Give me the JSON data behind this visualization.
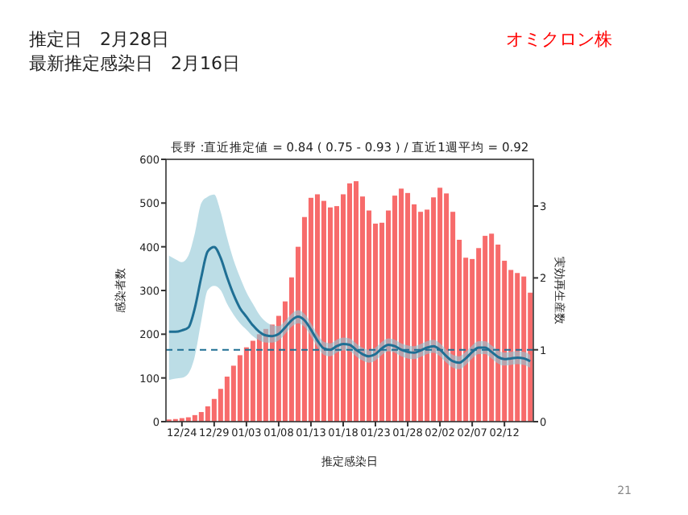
{
  "chart_data": {
    "type": "bar",
    "title": "長野 :直近推定値 = 0.84 ( 0.75 - 0.93 ) / 直近1週平均 = 0.92",
    "xlabel": "推定感染日",
    "ylabel": "感染者数",
    "y2label": "実効再生産数",
    "annotations": [
      "推定日　2月28日",
      "最新推定感染日　2月16日",
      "オミクロン株",
      "21"
    ],
    "categories": [
      null,
      null,
      "12/24",
      null,
      null,
      null,
      null,
      "12/29",
      null,
      null,
      null,
      null,
      "01/03",
      null,
      null,
      null,
      null,
      "01/08",
      null,
      null,
      null,
      null,
      "01/13",
      null,
      null,
      null,
      null,
      "01/18",
      null,
      null,
      null,
      null,
      "01/23",
      null,
      null,
      null,
      null,
      "01/28",
      null,
      null,
      null,
      null,
      "02/02",
      null,
      null,
      null,
      null,
      "02/07",
      null,
      null,
      null,
      null,
      "02/12",
      null,
      null,
      null,
      null
    ],
    "series": [
      {
        "color": "#f76b6b",
        "values": [
          5,
          6,
          8,
          10,
          15,
          22,
          35,
          52,
          75,
          103,
          128,
          152,
          170,
          185,
          200,
          212,
          222,
          242,
          275,
          330,
          400,
          468,
          512,
          520,
          505,
          490,
          493,
          520,
          545,
          550,
          515,
          483,
          453,
          455,
          483,
          517,
          533,
          523,
          497,
          480,
          485,
          513,
          535,
          522,
          480,
          416,
          375,
          372,
          397,
          425,
          430,
          405,
          368,
          347,
          340,
          332,
          295
        ]
      },
      {
        "type": "line",
        "axis": "y2",
        "color": "#1f6f94",
        "values": [
          1.25,
          1.25,
          1.27,
          1.31,
          1.58,
          2.01,
          2.37,
          2.43,
          2.28,
          2.01,
          1.77,
          1.58,
          1.46,
          1.34,
          1.25,
          1.2,
          1.19,
          1.22,
          1.31,
          1.41,
          1.46,
          1.41,
          1.28,
          1.13,
          1.02,
          1.0,
          1.05,
          1.08,
          1.07,
          1.0,
          0.94,
          0.91,
          0.94,
          1.02,
          1.07,
          1.05,
          1.0,
          0.97,
          0.96,
          0.99,
          1.03,
          1.05,
          1.0,
          0.91,
          0.84,
          0.82,
          0.88,
          0.97,
          1.03,
          1.03,
          0.97,
          0.9,
          0.87,
          0.88,
          0.89,
          0.88,
          0.84
        ],
        "upper": [
          2.31,
          2.26,
          2.22,
          2.31,
          2.62,
          3.04,
          3.13,
          3.16,
          2.92,
          2.56,
          2.25,
          2.01,
          1.8,
          1.64,
          1.49,
          1.39,
          1.34,
          1.33,
          1.4,
          1.5,
          1.55,
          1.5,
          1.37,
          1.22,
          1.11,
          1.09,
          1.14,
          1.17,
          1.16,
          1.09,
          1.03,
          1.0,
          1.03,
          1.11,
          1.16,
          1.14,
          1.09,
          1.06,
          1.05,
          1.08,
          1.12,
          1.14,
          1.09,
          1.0,
          0.93,
          0.91,
          0.97,
          1.06,
          1.12,
          1.12,
          1.06,
          0.99,
          0.96,
          0.97,
          0.98,
          0.97,
          0.93
        ],
        "lower": [
          0.58,
          0.6,
          0.61,
          0.67,
          0.91,
          1.4,
          1.83,
          1.89,
          1.83,
          1.64,
          1.49,
          1.37,
          1.28,
          1.19,
          1.13,
          1.1,
          1.1,
          1.13,
          1.22,
          1.32,
          1.37,
          1.32,
          1.19,
          1.04,
          0.93,
          0.91,
          0.96,
          0.99,
          0.98,
          0.91,
          0.85,
          0.82,
          0.85,
          0.93,
          0.98,
          0.96,
          0.91,
          0.88,
          0.87,
          0.9,
          0.94,
          0.96,
          0.91,
          0.82,
          0.75,
          0.73,
          0.79,
          0.88,
          0.94,
          0.94,
          0.88,
          0.81,
          0.78,
          0.79,
          0.8,
          0.79,
          0.75
        ]
      }
    ],
    "ylim": [
      0,
      600
    ],
    "yticks": [
      0,
      100,
      200,
      300,
      400,
      500,
      600
    ],
    "y2lim": [
      0,
      3.65
    ],
    "y2ticks": [
      0,
      1,
      2,
      3
    ],
    "ref_lines": [
      {
        "axis": "y2",
        "value": 1,
        "color": "#1f6f94",
        "line_style": "dashed"
      }
    ],
    "grid": false
  }
}
